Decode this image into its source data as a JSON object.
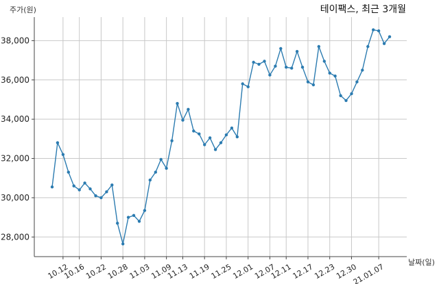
{
  "chart_data": {
    "type": "line",
    "title": "테이팩스, 최근 3개월",
    "ylabel": "주가(원)",
    "xlabel": "날짜(일)",
    "ylim": [
      27000,
      39200
    ],
    "yticks": [
      28000,
      30000,
      32000,
      34000,
      36000,
      38000
    ],
    "ytick_labels": [
      "28,000",
      "30,000",
      "32,000",
      "34,000",
      "36,000",
      "38,000"
    ],
    "grid": true,
    "color": "#2b7bb0",
    "xtick_labels": [
      "10.12",
      "10.16",
      "10.22",
      "10.28",
      "11.03",
      "11.09",
      "11.13",
      "11.19",
      "11.25",
      "12.01",
      "12.07",
      "12.11",
      "12.17",
      "12.23",
      "12.30",
      "21.01.07"
    ],
    "xtick_index": [
      2,
      5,
      9,
      13,
      17,
      21,
      24,
      28,
      32,
      36,
      40,
      43,
      47,
      51,
      55,
      60
    ],
    "values": [
      30550,
      32800,
      32200,
      31300,
      30600,
      30400,
      30750,
      30450,
      30100,
      30000,
      30300,
      30650,
      28700,
      27650,
      29000,
      29100,
      28800,
      29350,
      30900,
      31300,
      31950,
      31500,
      32900,
      34800,
      33950,
      34500,
      33400,
      33250,
      32700,
      33050,
      32450,
      32800,
      33200,
      33550,
      33100,
      35800,
      35650,
      36900,
      36800,
      36950,
      36250,
      36700,
      37600,
      36650,
      36600,
      37450,
      36650,
      35900,
      35750,
      37700,
      36950,
      36350,
      36200,
      35200,
      34950,
      35300,
      35900,
      36500,
      37700,
      38550,
      38500,
      37850,
      38200
    ]
  }
}
